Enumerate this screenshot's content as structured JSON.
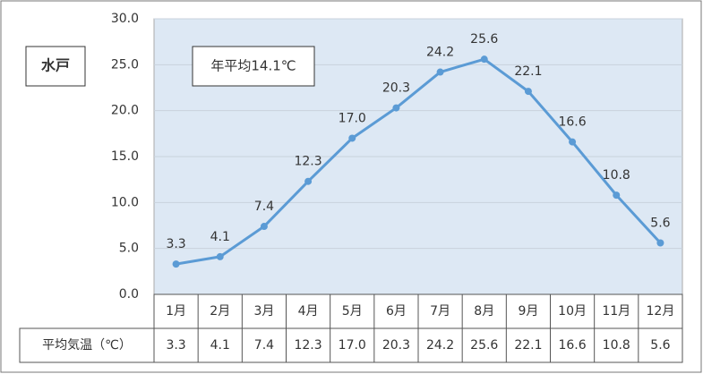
{
  "chart_data": {
    "type": "line",
    "location_label": "水戸",
    "annotation": "年平均14.1℃",
    "table_row_label": "平均気温（℃）",
    "categories": [
      "1月",
      "2月",
      "3月",
      "4月",
      "5月",
      "6月",
      "7月",
      "8月",
      "9月",
      "10月",
      "11月",
      "12月"
    ],
    "values": [
      3.3,
      4.1,
      7.4,
      12.3,
      17.0,
      20.3,
      24.2,
      25.6,
      22.1,
      16.6,
      10.8,
      5.6
    ],
    "value_labels": [
      "3.3",
      "4.1",
      "7.4",
      "12.3",
      "17.0",
      "20.3",
      "24.2",
      "25.6",
      "22.1",
      "16.6",
      "10.8",
      "5.6"
    ],
    "color": "#5b9bd5",
    "ylim": [
      0,
      30
    ],
    "yticks": [
      {
        "value": 0,
        "label": "0.0"
      },
      {
        "value": 5,
        "label": "5.0"
      },
      {
        "value": 10,
        "label": "10.0"
      },
      {
        "value": 15,
        "label": "15.0"
      },
      {
        "value": 20,
        "label": "20.0"
      },
      {
        "value": 25,
        "label": "25.0"
      },
      {
        "value": 30,
        "label": "30.0"
      }
    ],
    "grid": true
  }
}
